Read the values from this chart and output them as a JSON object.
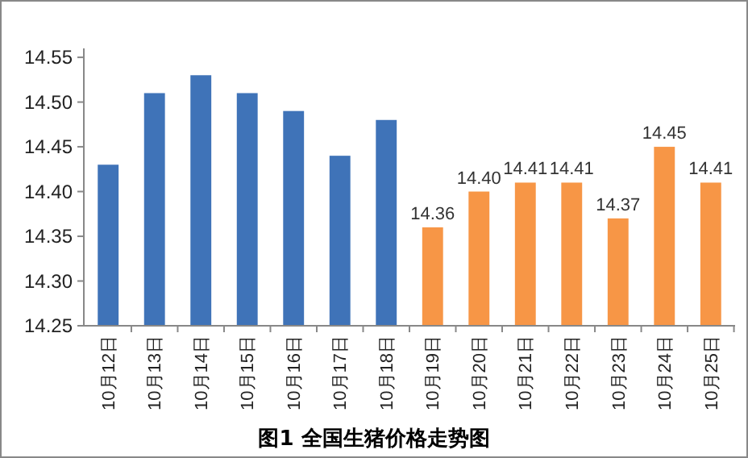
{
  "chart_data": {
    "type": "bar",
    "title": "图1 全国生猪价格走势图",
    "categories": [
      "10月12日",
      "10月13日",
      "10月14日",
      "10月15日",
      "10月16日",
      "10月17日",
      "10月18日",
      "10月19日",
      "10月20日",
      "10月21日",
      "10月22日",
      "10月23日",
      "10月24日",
      "10月25日"
    ],
    "values": [
      14.43,
      14.51,
      14.53,
      14.51,
      14.49,
      14.44,
      14.48,
      14.36,
      14.4,
      14.41,
      14.41,
      14.37,
      14.45,
      14.41
    ],
    "colors": [
      "#3f73b8",
      "#3f73b8",
      "#3f73b8",
      "#3f73b8",
      "#3f73b8",
      "#3f73b8",
      "#3f73b8",
      "#f79646",
      "#f79646",
      "#f79646",
      "#f79646",
      "#f79646",
      "#f79646",
      "#f79646"
    ],
    "value_labels": [
      null,
      null,
      null,
      null,
      null,
      null,
      null,
      "14.36",
      "14.40",
      "14.41",
      "14.41",
      "14.37",
      "14.45",
      "14.41"
    ],
    "ylim": [
      14.25,
      14.56
    ],
    "yticks": [
      {
        "value": 14.25,
        "label": "14.25"
      },
      {
        "value": 14.3,
        "label": "14.30"
      },
      {
        "value": 14.35,
        "label": "14.35"
      },
      {
        "value": 14.4,
        "label": "14.40"
      },
      {
        "value": 14.45,
        "label": "14.45"
      },
      {
        "value": 14.5,
        "label": "14.50"
      },
      {
        "value": 14.55,
        "label": "14.55"
      }
    ],
    "grid": false
  }
}
